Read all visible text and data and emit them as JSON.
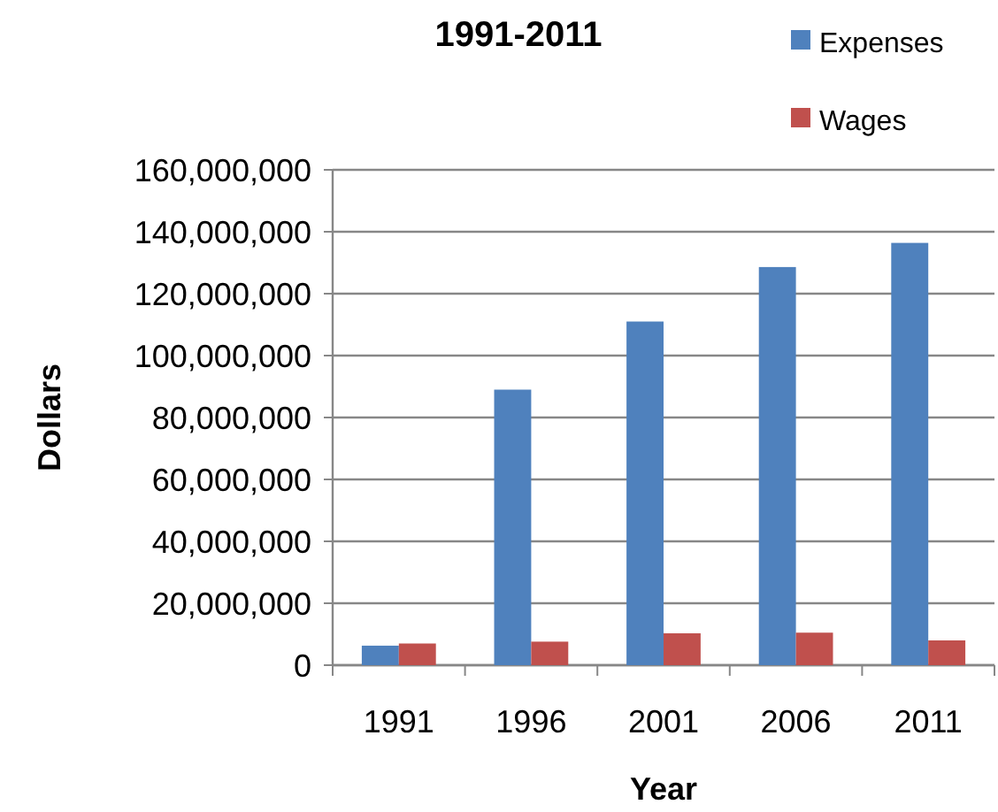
{
  "chart_data": {
    "type": "bar",
    "title": "1991-2011",
    "xlabel": "Year",
    "ylabel": "Dollars",
    "categories": [
      "1991",
      "1996",
      "2001",
      "2006",
      "2011"
    ],
    "series": [
      {
        "name": "Expenses",
        "color": "#4f81bd",
        "values": [
          6300000,
          89000000,
          111000000,
          128600000,
          136400000
        ]
      },
      {
        "name": "Wages",
        "color": "#c0504d",
        "values": [
          7000000,
          7600000,
          10300000,
          10500000,
          8000000
        ]
      }
    ],
    "ylim": [
      0,
      160000000
    ],
    "yticks": [
      {
        "value": 0,
        "label": "0"
      },
      {
        "value": 20000000,
        "label": "20,000,000"
      },
      {
        "value": 40000000,
        "label": "40,000,000"
      },
      {
        "value": 60000000,
        "label": "60,000,000"
      },
      {
        "value": 80000000,
        "label": "80,000,000"
      },
      {
        "value": 100000000,
        "label": "100,000,000"
      },
      {
        "value": 120000000,
        "label": "120,000,000"
      },
      {
        "value": 140000000,
        "label": "140,000,000"
      },
      {
        "value": 160000000,
        "label": "160,000,000"
      }
    ],
    "grid": "y",
    "legend": "top right"
  }
}
